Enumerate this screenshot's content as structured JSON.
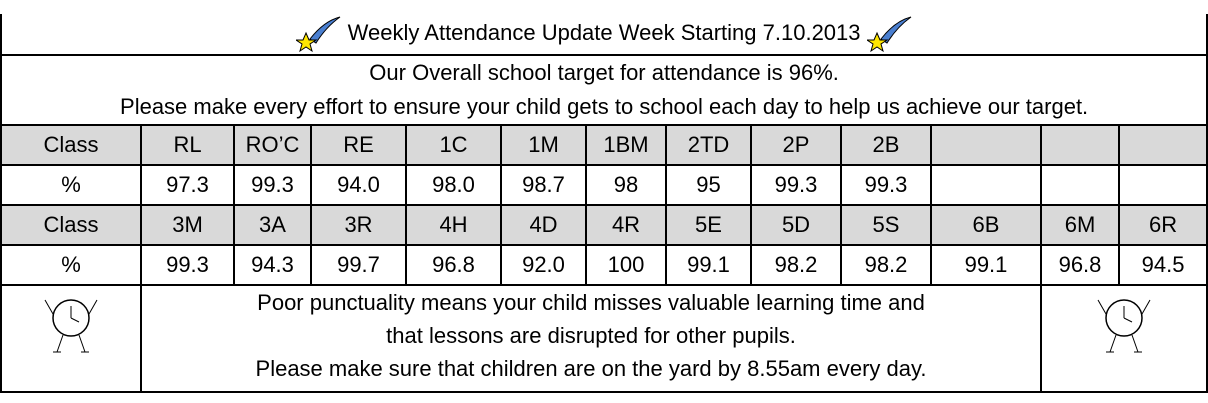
{
  "header": {
    "title": "Weekly Attendance Update Week Starting 7.10.2013"
  },
  "intro": {
    "lines": [
      "Our Overall school target for attendance is 96%.",
      "Please make every effort to ensure your child gets to school each day to help us achieve our target."
    ]
  },
  "table": {
    "rows": [
      [
        "Class",
        "RL",
        "RO’C",
        "RE",
        "1C",
        "1M",
        "1BM",
        "2TD",
        "2P",
        "2B"
      ],
      [
        "%",
        "97.3",
        "99.3",
        "94.0",
        "98.0",
        "98.7",
        "98",
        "95",
        "99.3",
        "99.3"
      ],
      [
        "Class",
        "3M",
        "3A",
        "3R",
        "4H",
        "4D",
        "4R",
        "5E",
        "5D",
        "5S",
        "6B",
        "6M",
        "6R"
      ],
      [
        "%",
        "99.3",
        "94.3",
        "99.7",
        "96.8",
        "92.0",
        "100",
        "99.1",
        "98.2",
        "98.2",
        "99.1",
        "96.8",
        "94.5"
      ]
    ]
  },
  "footer": {
    "lines": [
      "Poor punctuality means your child misses valuable learning time and",
      "that lessons are disrupted for other pupils.",
      "Please make sure that children are on the yard by 8.55am every day."
    ]
  }
}
